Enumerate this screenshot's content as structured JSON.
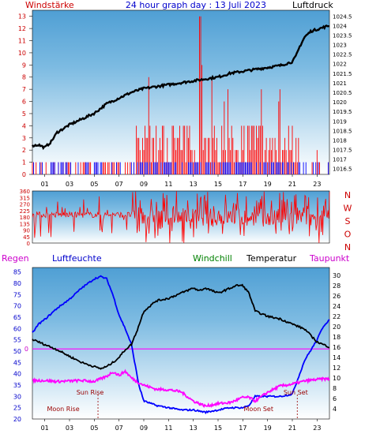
{
  "header": {
    "left_label": "Windstärke",
    "title": "24 hour graph day : 13 Juli 2023",
    "right_label": "Luftdruck"
  },
  "bottom_header": {
    "regen": "Regen",
    "luftfeuchte": "Luftfeuchte",
    "windchill": "Windchill",
    "temperatur": "Temperatur",
    "taupunkt": "Taupunkt"
  },
  "colors": {
    "panel_top": "#5ca8d8",
    "panel_bottom": "#ffffff",
    "red": "#ff0000",
    "blue": "#0000ff",
    "black": "#000000",
    "green": "#008000",
    "magenta": "#ff00ff",
    "title_blue": "#0000cc",
    "left_axis": "#cc0000",
    "regen_color": "#cc00cc"
  },
  "chart_data": [
    {
      "type": "line",
      "name": "wind-pressure",
      "x_ticks": [
        "01",
        "03",
        "05",
        "07",
        "09",
        "11",
        "13",
        "15",
        "17",
        "19",
        "21",
        "23"
      ],
      "y_left_ticks": [
        "0",
        "1",
        "2",
        "3",
        "4",
        "5",
        "6",
        "7",
        "8",
        "9",
        "10",
        "11",
        "12",
        "13"
      ],
      "y_left_range": [
        0,
        13.5
      ],
      "y_right_ticks": [
        "1016.5",
        "1017",
        "1017.5",
        "1018",
        "1018.5",
        "1019",
        "1019.5",
        "1020",
        "1020.5",
        "1021",
        "1021.5",
        "1022",
        "1022.5",
        "1023",
        "1023.5",
        "1024",
        "1024.5"
      ],
      "y_right_range": [
        1016.2,
        1024.8
      ],
      "series": [
        {
          "name": "Luftdruck",
          "x": [
            0,
            0.5,
            1,
            1.5,
            2,
            3,
            4,
            5,
            6,
            7,
            8,
            9,
            10,
            11,
            12,
            13,
            14,
            15,
            16,
            17,
            18,
            19,
            19.5,
            20,
            20.5,
            21,
            21.3,
            21.6,
            22,
            22.5,
            23,
            23.5,
            24
          ],
          "values": [
            1017.7,
            1017.75,
            1017.6,
            1017.9,
            1018.4,
            1018.8,
            1019.1,
            1019.4,
            1019.9,
            1020.2,
            1020.5,
            1020.7,
            1020.8,
            1020.9,
            1021.0,
            1021.1,
            1021.2,
            1021.3,
            1021.5,
            1021.6,
            1021.7,
            1021.8,
            1021.85,
            1021.9,
            1022.0,
            1022.1,
            1022.4,
            1022.9,
            1023.4,
            1023.7,
            1023.8,
            1023.9,
            1024.0
          ]
        }
      ]
    },
    {
      "type": "line",
      "name": "wind-direction",
      "y_left_ticks": [
        "0",
        "45",
        "90",
        "135",
        "180",
        "225",
        "270",
        "315",
        "360"
      ],
      "y_range": [
        0,
        360
      ],
      "direction_labels": [
        "N",
        "W",
        "S",
        "O",
        "N"
      ]
    },
    {
      "type": "line",
      "name": "humidity-temperature",
      "y_left_ticks": [
        "20",
        "25",
        "30",
        "35",
        "40",
        "45",
        "50",
        "55",
        "60",
        "65",
        "70",
        "75",
        "80",
        "85"
      ],
      "y_left_range": [
        20,
        87
      ],
      "y_right_ticks": [
        "4",
        "6",
        "8",
        "10",
        "12",
        "14",
        "16",
        "18",
        "20",
        "22",
        "24",
        "26",
        "28",
        "30"
      ],
      "y_right_range": [
        2,
        31.5
      ],
      "rain_zero_label": "0",
      "annotations": {
        "sun_rise": {
          "label": "Sun Rise",
          "x": 5.3
        },
        "sun_set": {
          "label": "Sun Set",
          "x": 21.4
        },
        "moon_rise": {
          "label": "Moon Rise",
          "x": 5.3
        },
        "moon_set": {
          "label": "Moon Set",
          "x": 21.4
        }
      },
      "series": [
        {
          "name": "Luftfeuchte",
          "x": [
            0,
            0.5,
            1,
            2,
            3,
            4,
            5,
            5.5,
            6,
            6.5,
            7,
            7.5,
            8,
            8.3,
            8.6,
            9,
            10,
            11,
            12,
            13,
            14,
            15,
            16,
            17,
            17.5,
            18,
            19,
            20,
            21,
            22,
            23,
            23.5,
            24
          ],
          "values": [
            58,
            62,
            64,
            69,
            73,
            78,
            82,
            83,
            82,
            75,
            66,
            60,
            53,
            44,
            35,
            28,
            26,
            25,
            24,
            24,
            23,
            24,
            25,
            25,
            26,
            30,
            30,
            30,
            31,
            46,
            55,
            61,
            64
          ]
        },
        {
          "name": "Temperatur",
          "x": [
            0,
            1,
            2,
            3,
            4,
            5,
            5.5,
            6,
            6.5,
            7,
            7.5,
            8,
            8.5,
            9,
            10,
            11,
            12,
            13,
            13.5,
            14,
            15,
            16,
            16.5,
            17,
            17.5,
            18,
            19,
            20,
            21,
            22,
            23,
            24
          ],
          "values": [
            17.5,
            16.5,
            15.5,
            14.2,
            13.0,
            12.2,
            11.8,
            12.2,
            13.0,
            14.0,
            15.5,
            16.5,
            19.5,
            23.0,
            25.0,
            25.5,
            26.5,
            27.5,
            27.0,
            27.5,
            26.5,
            27.5,
            28.0,
            28.0,
            26.5,
            23.0,
            22.0,
            21.5,
            20.5,
            19.5,
            17.0,
            16.0
          ]
        },
        {
          "name": "Taupunkt",
          "x": [
            0,
            1,
            2,
            3,
            4,
            5,
            6,
            6.5,
            7,
            7.5,
            8,
            8.5,
            9,
            10,
            11,
            12,
            13,
            14,
            15,
            16,
            17,
            17.5,
            18,
            19,
            20,
            21,
            22,
            23,
            23.5,
            24
          ],
          "values": [
            9.5,
            9.5,
            9.3,
            9.4,
            9.5,
            9.3,
            10.3,
            11.2,
            10.5,
            11.3,
            10.0,
            9.2,
            8.6,
            7.8,
            7.7,
            7.3,
            5.5,
            4.5,
            5.0,
            5.2,
            6.2,
            6.2,
            5.5,
            7.2,
            8.4,
            8.8,
            9.4,
            9.7,
            9.8,
            9.8
          ]
        }
      ]
    }
  ]
}
